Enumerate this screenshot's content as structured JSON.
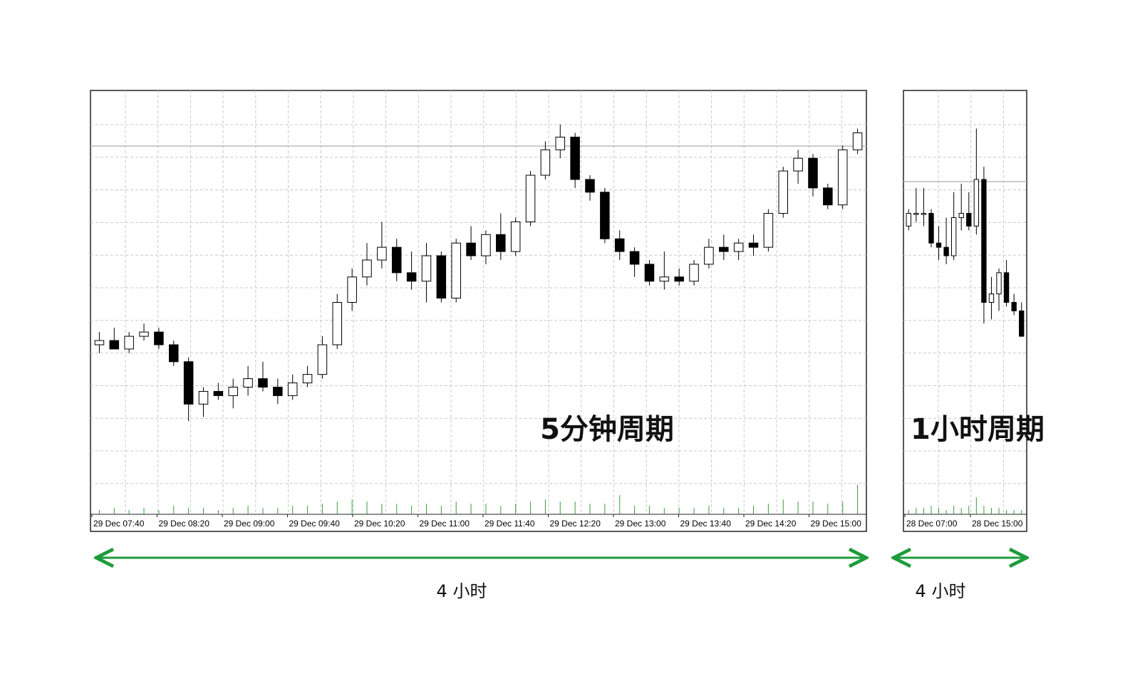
{
  "chart_data": [
    {
      "type": "candlestick",
      "title": "5分钟周期",
      "span_label": "4 小时",
      "x_labels": [
        "29 Dec 07:40",
        "29 Dec 08:20",
        "29 Dec 09:00",
        "29 Dec 09:40",
        "29 Dec 10:20",
        "29 Dec 11:00",
        "29 Dec 11:40",
        "29 Dec 12:20",
        "29 Dec 13:00",
        "29 Dec 13:40",
        "29 Dec 14:20",
        "29 Dec 15:00"
      ],
      "ylim": [
        0,
        100
      ],
      "price_line": 86.9,
      "candles": [
        [
          40,
          43,
          38,
          41
        ],
        [
          41,
          44,
          39,
          39
        ],
        [
          39,
          43,
          38,
          42
        ],
        [
          42,
          45,
          41,
          43
        ],
        [
          43,
          44,
          39,
          40
        ],
        [
          40,
          41,
          35,
          36
        ],
        [
          36,
          37,
          22,
          26
        ],
        [
          26,
          30,
          23,
          29
        ],
        [
          29,
          31,
          27,
          28
        ],
        [
          28,
          32,
          25,
          30
        ],
        [
          30,
          35,
          28,
          32
        ],
        [
          32,
          36,
          29,
          30
        ],
        [
          30,
          32,
          26,
          28
        ],
        [
          28,
          33,
          27,
          31
        ],
        [
          31,
          35,
          30,
          33
        ],
        [
          33,
          42,
          32,
          40
        ],
        [
          40,
          52,
          39,
          50
        ],
        [
          50,
          58,
          48,
          56
        ],
        [
          56,
          64,
          54,
          60
        ],
        [
          60,
          69,
          58,
          63
        ],
        [
          63,
          65,
          55,
          57
        ],
        [
          57,
          62,
          53,
          55
        ],
        [
          55,
          64,
          50,
          61
        ],
        [
          61,
          62,
          50,
          51
        ],
        [
          51,
          65,
          50,
          64
        ],
        [
          64,
          68,
          60,
          61
        ],
        [
          61,
          67,
          59,
          66
        ],
        [
          66,
          71,
          60,
          62
        ],
        [
          62,
          70,
          61,
          69
        ],
        [
          69,
          81,
          68,
          80
        ],
        [
          80,
          88,
          79,
          86
        ],
        [
          86,
          92,
          84,
          89
        ],
        [
          89,
          90,
          77,
          79
        ],
        [
          79,
          80,
          74,
          76
        ],
        [
          76,
          77,
          64,
          65
        ],
        [
          65,
          67,
          60,
          62
        ],
        [
          62,
          63,
          56,
          59
        ],
        [
          59,
          60,
          54,
          55
        ],
        [
          55,
          62,
          53,
          56
        ],
        [
          56,
          58,
          54,
          55
        ],
        [
          55,
          60,
          54,
          59
        ],
        [
          59,
          65,
          58,
          63
        ],
        [
          63,
          66,
          60,
          62
        ],
        [
          62,
          65,
          60,
          64
        ],
        [
          64,
          66,
          61,
          63
        ],
        [
          63,
          72,
          62,
          71
        ],
        [
          71,
          82,
          70,
          81
        ],
        [
          81,
          86,
          78,
          84
        ],
        [
          84,
          85,
          75,
          77
        ],
        [
          77,
          78,
          72,
          73
        ],
        [
          73,
          87,
          72,
          86
        ],
        [
          86,
          91,
          85,
          90
        ]
      ],
      "volumes": [
        1,
        1.5,
        1,
        1.5,
        1,
        2,
        1.5,
        1.5,
        1,
        1.5,
        2,
        1.5,
        1.5,
        2,
        2,
        2.5,
        3,
        3.5,
        3,
        2.5,
        2.5,
        2,
        2.5,
        2,
        3,
        2.5,
        2.5,
        2,
        2.5,
        3,
        3.5,
        3,
        3,
        2.5,
        2.5,
        4.5,
        2,
        2,
        1.5,
        1.5,
        1.5,
        2,
        1.5,
        1.5,
        2,
        2.5,
        3.5,
        3,
        3,
        2.5,
        3,
        7
      ]
    },
    {
      "type": "candlestick",
      "title": "1小时周期",
      "span_label": "4 小时",
      "x_labels": [
        "28 Dec 07:00",
        "28 Dec 15:00"
      ],
      "ylim": [
        0,
        100
      ],
      "price_line": 78.5,
      "candles": [
        [
          68,
          72,
          67,
          71
        ],
        [
          71,
          77,
          69,
          71
        ],
        [
          71,
          77,
          68,
          71
        ],
        [
          71,
          72,
          63,
          64
        ],
        [
          64,
          68,
          60,
          63
        ],
        [
          63,
          70,
          59,
          61
        ],
        [
          61,
          76,
          60,
          70
        ],
        [
          70,
          78,
          67,
          71
        ],
        [
          71,
          76,
          67,
          68
        ],
        [
          68,
          91,
          66,
          79
        ],
        [
          79,
          82,
          45,
          50
        ],
        [
          50,
          56,
          46,
          52
        ],
        [
          52,
          58,
          48,
          57
        ],
        [
          57,
          60,
          49,
          50
        ],
        [
          50,
          52,
          47,
          48
        ],
        [
          48,
          50,
          42,
          42
        ]
      ],
      "volumes": [
        1,
        1.5,
        1.5,
        2,
        1.5,
        1,
        2,
        1.5,
        2,
        4,
        2,
        1.5,
        1.5,
        1,
        1,
        1
      ]
    }
  ]
}
